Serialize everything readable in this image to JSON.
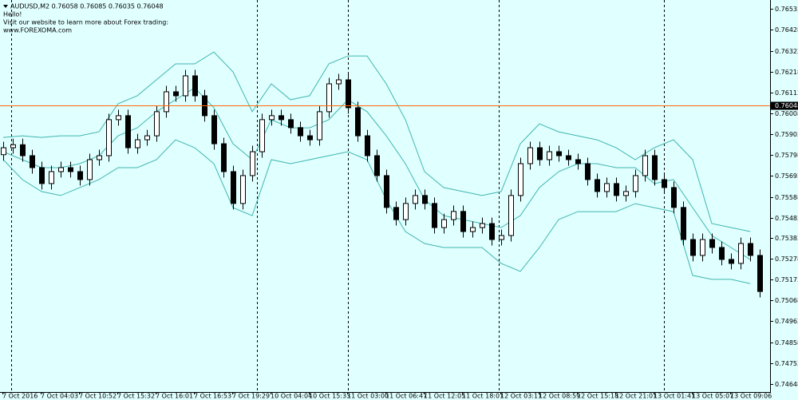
{
  "chart_data": {
    "type": "candlestick",
    "header": {
      "symbol_line": "AUDUSD,M2  0.76058 0.76085 0.76035 0.76048",
      "greeting": "Hello!",
      "message": "Visit our website to learn more about Forex trading:",
      "website": "www.FOREXOMA.com"
    },
    "categories": [
      "7 Oct 2016",
      null,
      null,
      null,
      "7 Oct 04:03",
      null,
      null,
      null,
      "7 Oct 10:52",
      null,
      null,
      null,
      "7 Oct 15:32",
      null,
      null,
      null,
      "7 Oct 16:01",
      null,
      null,
      null,
      "7 Oct 16:53",
      null,
      null,
      null,
      "7 Oct 19:29",
      null,
      null,
      null,
      "10 Oct 04:04",
      null,
      null,
      null,
      "10 Oct 15:33",
      null,
      null,
      null,
      "11 Oct 03:00",
      null,
      null,
      null,
      "11 Oct 06:47",
      null,
      null,
      null,
      "11 Oct 12:05",
      null,
      null,
      null,
      "11 Oct 18:01",
      null,
      null,
      null,
      "12 Oct 03:11",
      null,
      null,
      null,
      "12 Oct 08:59",
      null,
      null,
      null,
      "12 Oct 15:18",
      null,
      null,
      null,
      "12 Oct 21:01",
      null,
      null,
      null,
      "13 Oct 01:41",
      null,
      null,
      null,
      "13 Oct 05:07",
      null,
      null,
      null,
      "13 Oct 09:06",
      null,
      null,
      null
    ],
    "open": [
      0.758,
      0.75835,
      0.7585,
      0.75795,
      0.75735,
      0.75655,
      0.75715,
      0.75735,
      0.75715,
      0.75675,
      0.75775,
      0.75795,
      0.75976,
      0.75996,
      0.75835,
      0.75875,
      0.75895,
      0.76016,
      0.76116,
      0.76096,
      0.76196,
      0.76096,
      0.75996,
      0.75855,
      0.75715,
      0.75555,
      0.75695,
      0.75815,
      0.75976,
      0.75996,
      0.75976,
      0.75936,
      0.75895,
      0.75875,
      0.76016,
      0.76156,
      0.76176,
      0.76036,
      0.75895,
      0.75795,
      0.75695,
      0.75535,
      0.75474,
      0.75555,
      0.75595,
      0.75555,
      0.75434,
      0.75474,
      0.75515,
      0.75414,
      0.75434,
      0.75454,
      0.75374,
      0.75394,
      0.75595,
      0.75755,
      0.75835,
      0.75775,
      0.75815,
      0.75795,
      0.75775,
      0.75755,
      0.75675,
      0.75615,
      0.75655,
      0.75595,
      0.75615,
      0.75695,
      0.75795,
      0.75675,
      0.75635,
      0.75535,
      0.75374,
      0.75294,
      0.75374,
      0.75334,
      0.75274,
      0.75254,
      0.75354,
      0.75294
    ],
    "high": [
      0.75865,
      0.7588,
      0.7588,
      0.75825,
      0.75765,
      0.75745,
      0.75765,
      0.75765,
      0.75745,
      0.75805,
      0.75825,
      0.76006,
      0.76026,
      0.76026,
      0.75905,
      0.75925,
      0.76046,
      0.76146,
      0.76146,
      0.76226,
      0.76226,
      0.76126,
      0.76026,
      0.75885,
      0.75745,
      0.75725,
      0.75845,
      0.76006,
      0.76026,
      0.76026,
      0.76006,
      0.75966,
      0.75925,
      0.76046,
      0.76186,
      0.76206,
      0.76206,
      0.76066,
      0.75925,
      0.75825,
      0.75725,
      0.75565,
      0.75585,
      0.75625,
      0.75625,
      0.75585,
      0.75504,
      0.75545,
      0.75545,
      0.75464,
      0.75484,
      0.75484,
      0.75424,
      0.75625,
      0.75785,
      0.75865,
      0.75865,
      0.75845,
      0.75845,
      0.75825,
      0.75805,
      0.75785,
      0.75705,
      0.75685,
      0.75685,
      0.75645,
      0.75725,
      0.75825,
      0.75825,
      0.75705,
      0.75665,
      0.75565,
      0.75404,
      0.75404,
      0.75404,
      0.75364,
      0.75304,
      0.75384,
      0.75384,
      0.75324
    ],
    "low": [
      0.7577,
      0.75805,
      0.75765,
      0.75705,
      0.75625,
      0.75625,
      0.75685,
      0.75685,
      0.75645,
      0.75645,
      0.75745,
      0.75765,
      0.75946,
      0.75805,
      0.75805,
      0.75845,
      0.75865,
      0.75986,
      0.76066,
      0.76066,
      0.76066,
      0.75966,
      0.75825,
      0.75685,
      0.75525,
      0.75525,
      0.75665,
      0.75785,
      0.75946,
      0.75946,
      0.75906,
      0.75865,
      0.75845,
      0.75845,
      0.75986,
      0.76126,
      0.76006,
      0.75865,
      0.75765,
      0.75665,
      0.75505,
      0.75444,
      0.75444,
      0.75525,
      0.75525,
      0.75404,
      0.75404,
      0.75444,
      0.75384,
      0.75384,
      0.75404,
      0.75344,
      0.75344,
      0.75364,
      0.75565,
      0.75725,
      0.75745,
      0.75745,
      0.75765,
      0.75745,
      0.75725,
      0.75645,
      0.75585,
      0.75585,
      0.75565,
      0.75565,
      0.75585,
      0.75665,
      0.75645,
      0.75605,
      0.75505,
      0.75344,
      0.75264,
      0.75264,
      0.75304,
      0.75244,
      0.75224,
      0.75224,
      0.75264,
      0.75083
    ],
    "close": [
      0.75835,
      0.7585,
      0.75795,
      0.75735,
      0.75655,
      0.75715,
      0.75735,
      0.75715,
      0.75675,
      0.75775,
      0.75795,
      0.75976,
      0.75996,
      0.75835,
      0.75875,
      0.75895,
      0.76016,
      0.76116,
      0.76096,
      0.76196,
      0.76096,
      0.75996,
      0.75855,
      0.75715,
      0.75555,
      0.75695,
      0.75815,
      0.75976,
      0.75996,
      0.75976,
      0.75936,
      0.75895,
      0.75875,
      0.76016,
      0.76156,
      0.76176,
      0.76036,
      0.75895,
      0.75795,
      0.75695,
      0.75535,
      0.75474,
      0.75555,
      0.75595,
      0.75555,
      0.75434,
      0.75474,
      0.75515,
      0.75414,
      0.75434,
      0.75454,
      0.75374,
      0.75394,
      0.75595,
      0.75755,
      0.75835,
      0.75775,
      0.75815,
      0.75795,
      0.75775,
      0.75755,
      0.75675,
      0.75615,
      0.75655,
      0.75595,
      0.75615,
      0.75695,
      0.75795,
      0.75675,
      0.75635,
      0.75535,
      0.75374,
      0.75294,
      0.75374,
      0.75334,
      0.75274,
      0.75254,
      0.75354,
      0.75294,
      0.75113
    ],
    "bull_color": "#ffffff",
    "bear_color": "#000000",
    "series": [
      {
        "color": "#3fb6b0",
        "x": [
          0,
          2,
          4,
          6,
          8,
          10,
          12,
          14,
          16,
          18,
          20,
          22,
          24,
          26,
          28,
          30,
          32,
          34,
          36,
          38,
          40,
          42,
          44,
          46,
          48,
          50,
          52,
          54,
          56,
          58,
          60,
          62,
          64,
          66,
          68,
          70,
          72,
          74,
          76,
          78
        ],
        "values": [
          0.75887,
          0.75895,
          0.75887,
          0.75895,
          0.75895,
          0.75915,
          0.76056,
          0.76096,
          0.76176,
          0.76256,
          0.76256,
          0.76316,
          0.76216,
          0.76016,
          0.76156,
          0.76076,
          0.76096,
          0.76256,
          0.76296,
          0.76296,
          0.76156,
          0.75976,
          0.75715,
          0.75635,
          0.75615,
          0.75595,
          0.75615,
          0.75855,
          0.75955,
          0.75915,
          0.75895,
          0.75875,
          0.75835,
          0.75775,
          0.75835,
          0.75875,
          0.75775,
          0.75454,
          0.75434,
          0.75414
        ]
      },
      {
        "color": "#3fb6b0",
        "x": [
          0,
          2,
          4,
          6,
          8,
          10,
          12,
          14,
          16,
          18,
          20,
          22,
          24,
          26,
          28,
          30,
          32,
          34,
          36,
          38,
          40,
          42,
          44,
          46,
          48,
          50,
          52,
          54,
          56,
          58,
          60,
          62,
          64,
          66,
          68,
          70,
          72,
          74,
          76,
          78
        ],
        "values": [
          0.75815,
          0.75775,
          0.75735,
          0.75735,
          0.75755,
          0.75795,
          0.75895,
          0.75935,
          0.76016,
          0.76076,
          0.76136,
          0.76036,
          0.75855,
          0.75775,
          0.75976,
          0.75935,
          0.75935,
          0.75976,
          0.76076,
          0.76016,
          0.75895,
          0.75755,
          0.75575,
          0.75494,
          0.75474,
          0.75454,
          0.75434,
          0.75494,
          0.75635,
          0.75715,
          0.75755,
          0.75755,
          0.75735,
          0.75735,
          0.75655,
          0.75675,
          0.75534,
          0.75394,
          0.75334,
          0.75274
        ]
      },
      {
        "color": "#3fb6b0",
        "x": [
          0,
          2,
          4,
          6,
          8,
          10,
          12,
          14,
          16,
          18,
          20,
          22,
          24,
          26,
          28,
          30,
          32,
          34,
          36,
          38,
          40,
          42,
          44,
          46,
          48,
          50,
          52,
          54,
          56,
          58,
          60,
          62,
          64,
          66,
          68,
          70,
          72,
          74,
          76,
          78
        ],
        "values": [
          0.75775,
          0.75675,
          0.75615,
          0.75595,
          0.75635,
          0.75675,
          0.75735,
          0.75735,
          0.75775,
          0.75875,
          0.75835,
          0.75755,
          0.75534,
          0.75494,
          0.75775,
          0.75755,
          0.75775,
          0.75795,
          0.75815,
          0.75775,
          0.75575,
          0.75414,
          0.75354,
          0.75334,
          0.75334,
          0.75334,
          0.75254,
          0.75214,
          0.75334,
          0.75474,
          0.75514,
          0.75514,
          0.75514,
          0.75554,
          0.75534,
          0.75514,
          0.75194,
          0.75174,
          0.75174,
          0.75153
        ]
      }
    ],
    "current_price": 0.76048,
    "current_price_color": "#ff6a00",
    "ylim": [
      0.74608,
      0.76577
    ],
    "yticks": [
      0.76533,
      0.76428,
      0.76322,
      0.76218,
      0.76113,
      0.76008,
      0.75903,
      0.75798,
      0.75693,
      0.75588,
      0.75483,
      0.75383,
      0.75278,
      0.75173,
      0.75068,
      0.74963,
      0.74858,
      0.74753,
      0.74648
    ]
  }
}
